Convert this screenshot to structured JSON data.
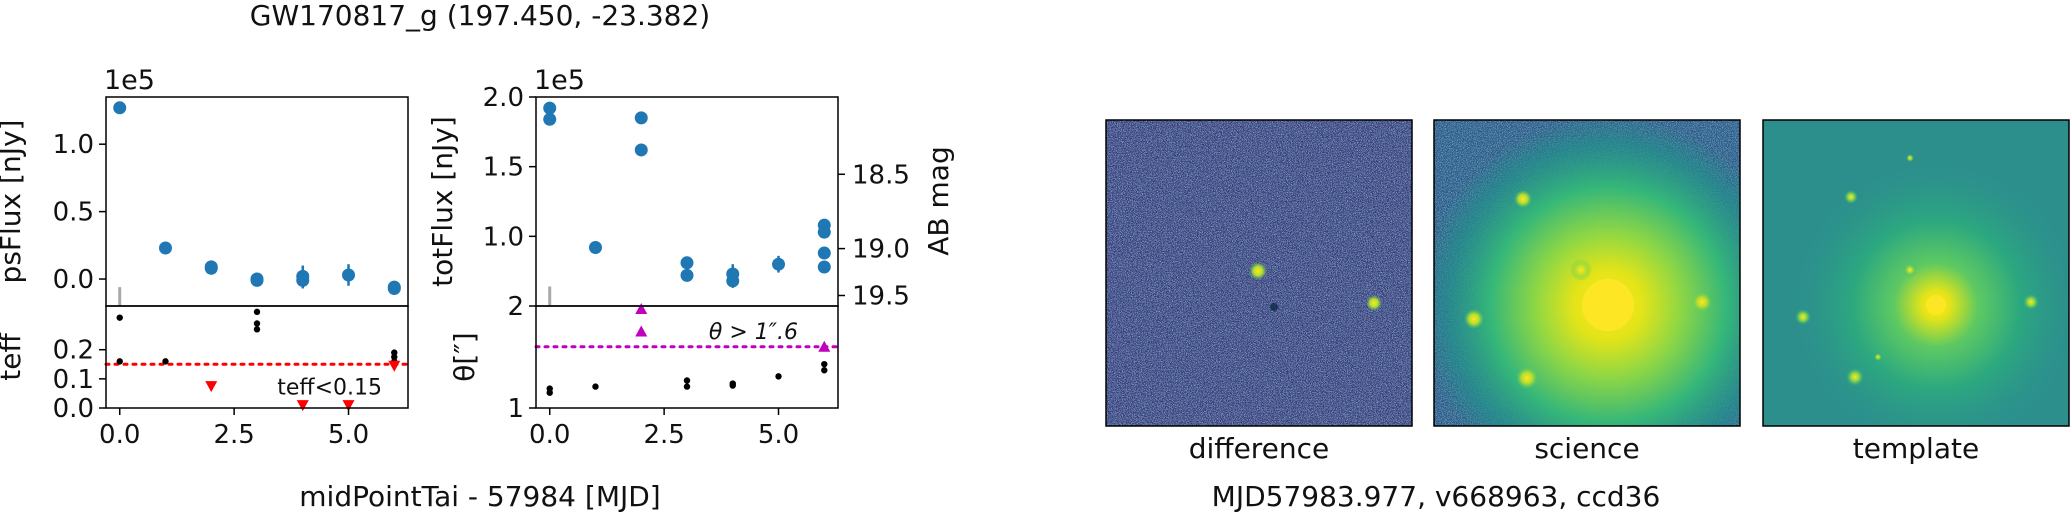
{
  "figure": {
    "title": "GW170817_g (197.450, -23.382)",
    "xlabel": "midPointTai - 57984 [MJD]",
    "image_caption": "MJD57983.977, v668963, ccd36"
  },
  "colors": {
    "flux": "#1f77b4",
    "teff_limit": "#ff0000",
    "seeing": "#bf00bf",
    "teff_points": "#000000"
  },
  "chart_data": [
    {
      "id": "psflux",
      "type": "scatter",
      "xlabel": "",
      "ylabel": "psFlux [nJy]",
      "offset_text": "1e5",
      "xlim": [
        -0.3,
        6.3
      ],
      "ylim": [
        -0.2,
        1.35
      ],
      "yticks": [
        0.0,
        0.5,
        1.0
      ],
      "ytick_labels": [
        "0.0",
        "0.5",
        "1.0"
      ],
      "points": [
        {
          "x": 0,
          "y": 1.27,
          "err": 0.02
        },
        {
          "x": 1,
          "y": 0.23,
          "err": 0.01
        },
        {
          "x": 2,
          "y": 0.09,
          "err": 0.01
        },
        {
          "x": 2,
          "y": 0.08,
          "err": 0.01
        },
        {
          "x": 3,
          "y": 0.0,
          "err": 0.01
        },
        {
          "x": 3,
          "y": -0.01,
          "err": 0.01
        },
        {
          "x": 4,
          "y": 0.02,
          "err": 0.08
        },
        {
          "x": 4,
          "y": -0.01,
          "err": 0.06
        },
        {
          "x": 5,
          "y": 0.03,
          "err": 0.08
        },
        {
          "x": 6,
          "y": -0.06,
          "err": 0.02
        },
        {
          "x": 6,
          "y": -0.07,
          "err": 0.02
        }
      ],
      "marker_x": 0,
      "marker_y": [
        -0.2,
        -0.06
      ]
    },
    {
      "id": "teff",
      "type": "scatter",
      "xlabel": "",
      "ylabel": "teff",
      "xlim": [
        -0.3,
        6.3
      ],
      "ylim": [
        0.0,
        0.35
      ],
      "yticks": [
        0.0,
        0.1,
        0.2
      ],
      "ytick_labels": [
        "0.0",
        "0.1",
        "0.2"
      ],
      "xticks": [
        0.0,
        2.5,
        5.0
      ],
      "xtick_labels": [
        "0.0",
        "2.5",
        "5.0"
      ],
      "points": [
        {
          "x": 0,
          "y": 0.31
        },
        {
          "x": 0,
          "y": 0.16
        },
        {
          "x": 1,
          "y": 0.16
        },
        {
          "x": 3,
          "y": 0.33
        },
        {
          "x": 3,
          "y": 0.29
        },
        {
          "x": 3,
          "y": 0.27
        },
        {
          "x": 6,
          "y": 0.19
        },
        {
          "x": 6,
          "y": 0.175
        },
        {
          "x": 6,
          "y": 0.16
        }
      ],
      "limits": [
        {
          "x": 2,
          "y": 0.075
        },
        {
          "x": 4,
          "y": 0.01
        },
        {
          "x": 5,
          "y": 0.01
        },
        {
          "x": 6,
          "y": 0.145
        }
      ],
      "threshold": 0.15,
      "annotation": "teff<0.15"
    },
    {
      "id": "totflux",
      "type": "scatter",
      "xlabel": "",
      "ylabel": "totFlux [nJy]",
      "ylabel_right": "AB mag",
      "offset_text": "1e5",
      "xlim": [
        -0.3,
        6.3
      ],
      "ylim": [
        0.5,
        2.0
      ],
      "yticks": [
        1.0,
        1.5,
        2.0
      ],
      "ytick_labels": [
        "1.0",
        "1.5",
        "2.0"
      ],
      "right_ticks": [
        18.5,
        19.0,
        19.5
      ],
      "right_tick_labels": [
        "18.5",
        "19.0",
        "19.5"
      ],
      "points": [
        {
          "x": 0,
          "y": 1.92,
          "err": 0.01
        },
        {
          "x": 0,
          "y": 1.84,
          "err": 0.01
        },
        {
          "x": 1,
          "y": 0.92,
          "err": 0.01
        },
        {
          "x": 2,
          "y": 1.85,
          "err": 0.01
        },
        {
          "x": 2,
          "y": 1.62,
          "err": 0.01
        },
        {
          "x": 3,
          "y": 0.81,
          "err": 0.02
        },
        {
          "x": 3,
          "y": 0.72,
          "err": 0.02
        },
        {
          "x": 4,
          "y": 0.73,
          "err": 0.07
        },
        {
          "x": 4,
          "y": 0.68,
          "err": 0.05
        },
        {
          "x": 5,
          "y": 0.8,
          "err": 0.06
        },
        {
          "x": 6,
          "y": 1.08,
          "err": 0.04
        },
        {
          "x": 6,
          "y": 1.03,
          "err": 0.03
        },
        {
          "x": 6,
          "y": 0.88,
          "err": 0.03
        },
        {
          "x": 6,
          "y": 0.78,
          "err": 0.03
        }
      ],
      "marker_x": 0,
      "marker_y": [
        0.5,
        0.64
      ]
    },
    {
      "id": "seeing",
      "type": "scatter",
      "xlabel": "",
      "ylabel": "θ[″]",
      "xlim": [
        -0.3,
        6.3
      ],
      "ylim": [
        1.0,
        2.0
      ],
      "yticks": [
        1.0,
        2.0
      ],
      "ytick_labels": [
        "1",
        "2"
      ],
      "xticks": [
        0.0,
        2.5,
        5.0
      ],
      "xtick_labels": [
        "0.0",
        "2.5",
        "5.0"
      ],
      "points": [
        {
          "x": 0,
          "y": 1.19
        },
        {
          "x": 0,
          "y": 1.15
        },
        {
          "x": 1,
          "y": 1.21
        },
        {
          "x": 3,
          "y": 1.27
        },
        {
          "x": 3,
          "y": 1.21
        },
        {
          "x": 4,
          "y": 1.24
        },
        {
          "x": 4,
          "y": 1.22
        },
        {
          "x": 5,
          "y": 1.31
        },
        {
          "x": 6,
          "y": 1.37
        },
        {
          "x": 6,
          "y": 1.43
        }
      ],
      "limits": [
        {
          "x": 2,
          "y": 1.97
        },
        {
          "x": 2,
          "y": 1.75
        },
        {
          "x": 6,
          "y": 1.6
        }
      ],
      "threshold": 1.6,
      "annotation": "θ > 1″.6"
    }
  ],
  "cutouts": [
    {
      "label": "difference"
    },
    {
      "label": "science"
    },
    {
      "label": "template"
    }
  ]
}
